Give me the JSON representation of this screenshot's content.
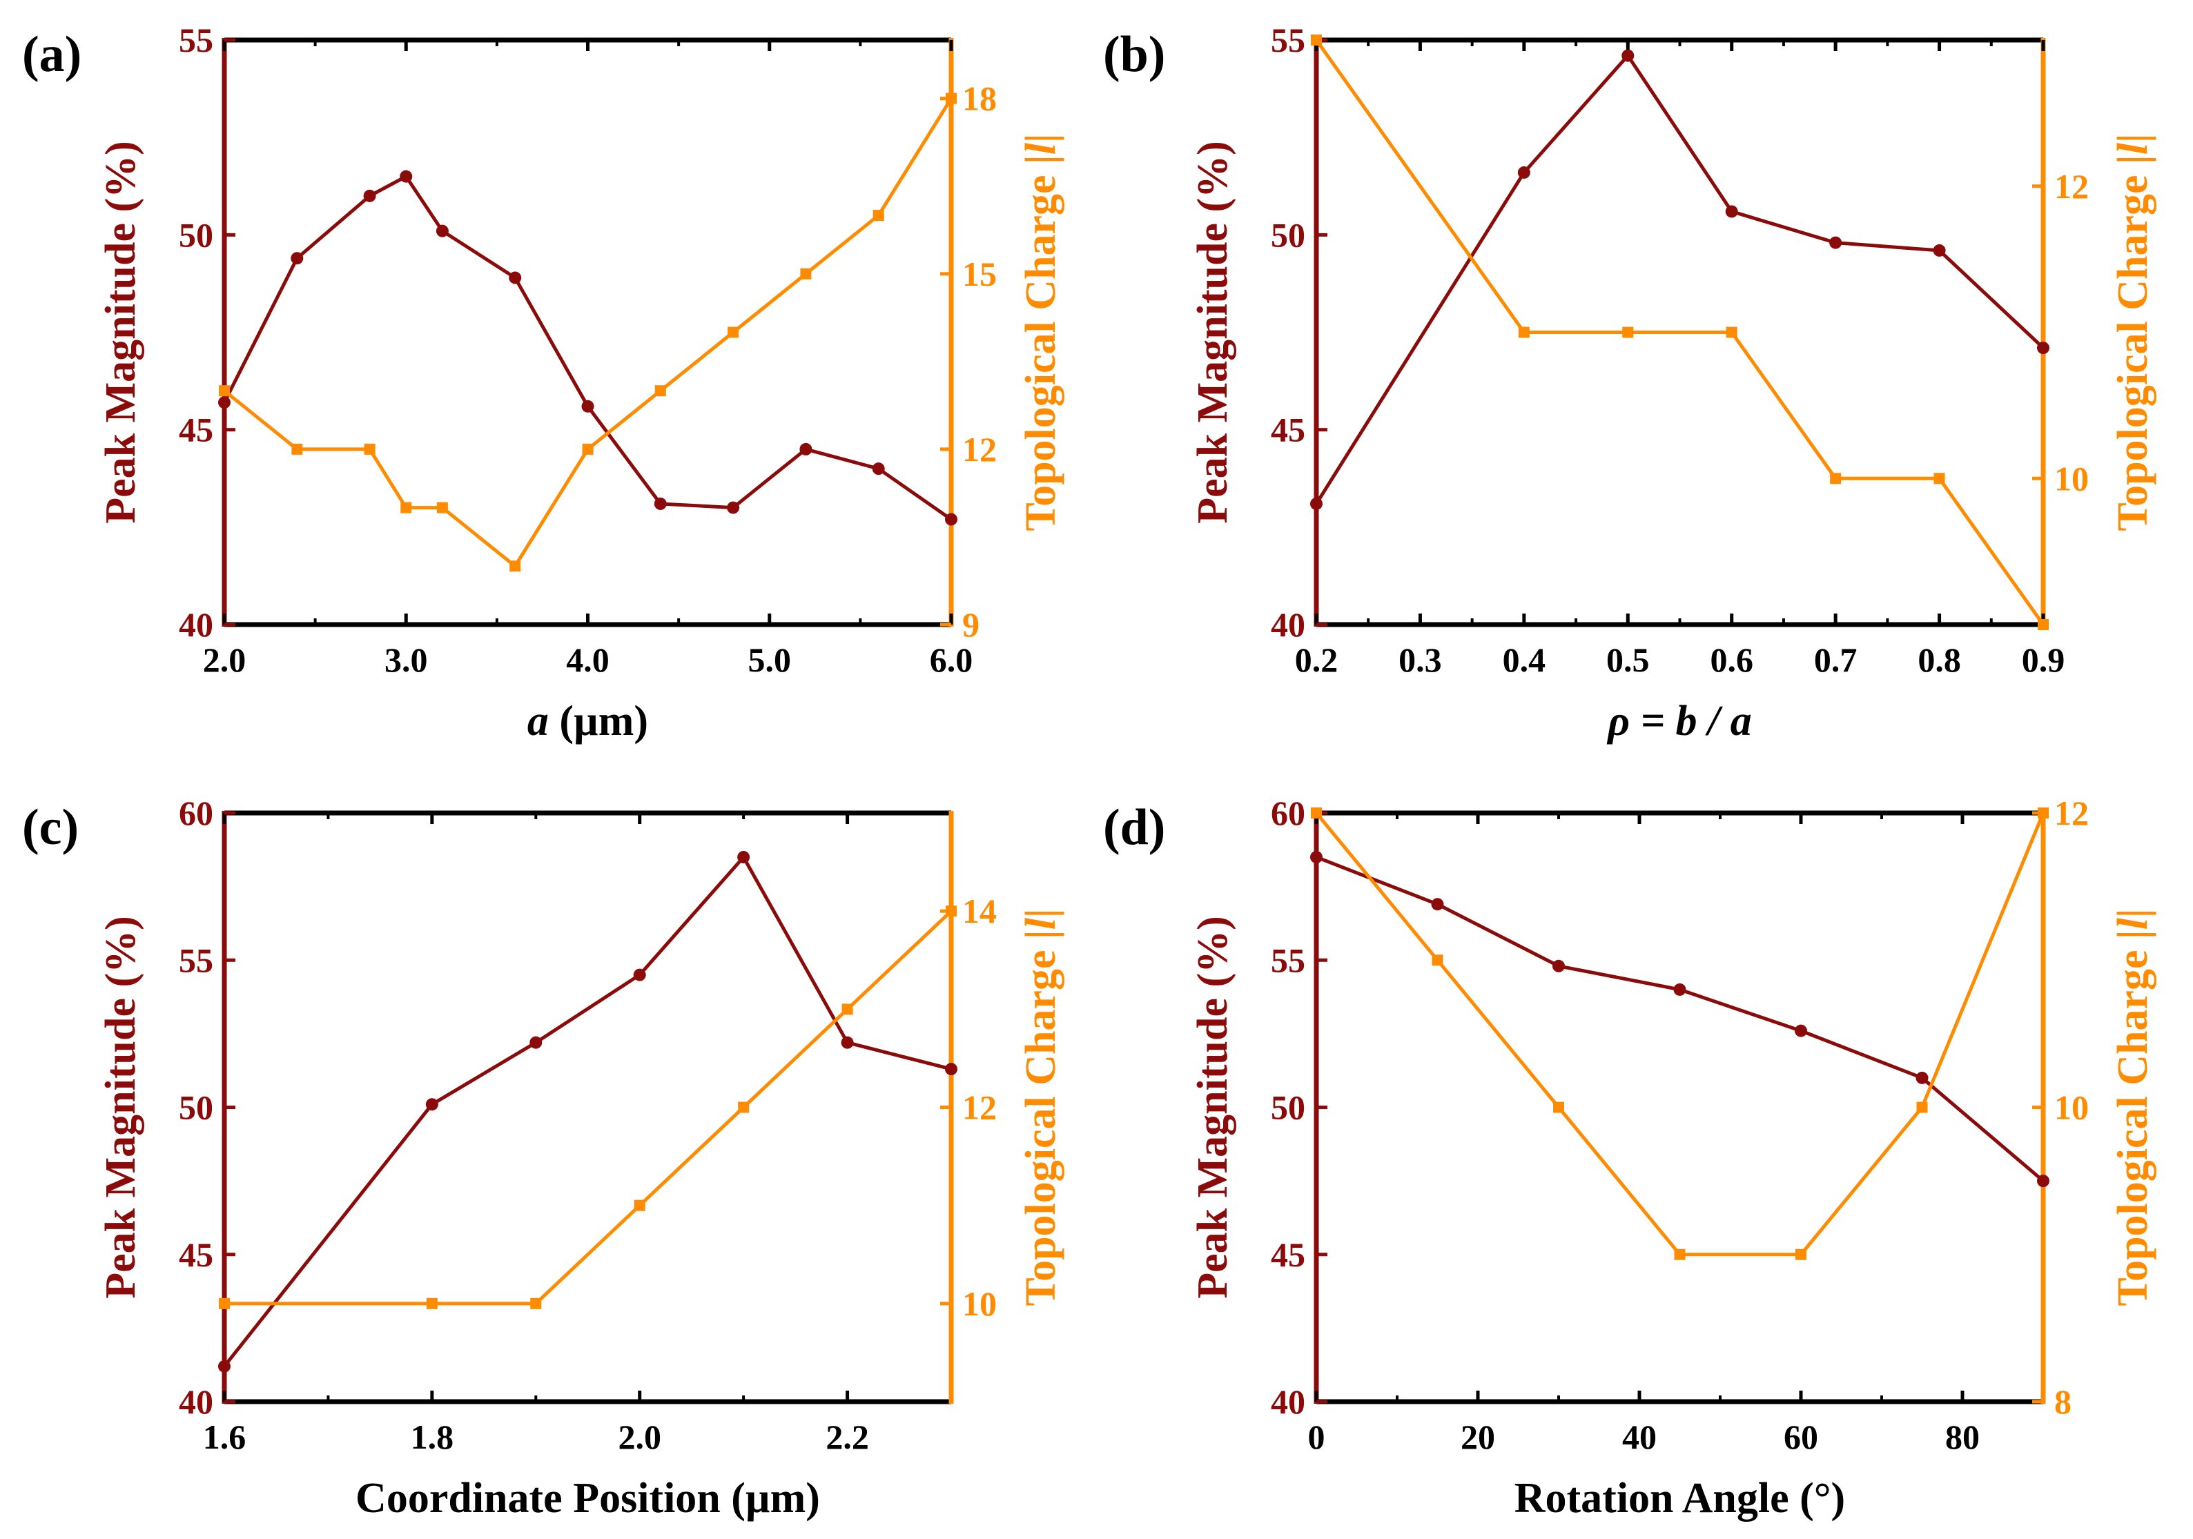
{
  "colors": {
    "left": "#8b0a0a",
    "right": "#ff8c00",
    "frame": "#000000"
  },
  "chart_data": [
    {
      "type": "line",
      "panel_label": "(a)",
      "xlabel": "a (µm)",
      "xlabel_italic": "a",
      "xlabel_rest": " (µm)",
      "ylabel": "Peak Magnitude (%)",
      "y2label": "Topological Charge |l|",
      "y2label_main": "Topological Charge |",
      "y2label_italic": "l",
      "y2label_end": "|",
      "xlim": [
        2.0,
        6.0
      ],
      "xticks": [
        "2.0",
        "3.0",
        "4.0",
        "5.0",
        "6.0"
      ],
      "xtick_values": [
        2.0,
        3.0,
        4.0,
        5.0,
        6.0
      ],
      "ylim": [
        40,
        55
      ],
      "yticks": [
        "40",
        "45",
        "50",
        "55"
      ],
      "ytick_values": [
        40,
        45,
        50,
        55
      ],
      "y2lim": [
        9,
        19
      ],
      "y2ticks": [
        "9",
        "12",
        "15",
        "18"
      ],
      "y2tick_values": [
        9,
        12,
        15,
        18
      ],
      "series": [
        {
          "name": "Peak Magnitude (%)",
          "axis": "left",
          "marker": "circle",
          "x": [
            2.0,
            2.4,
            2.8,
            3.0,
            3.2,
            3.6,
            4.0,
            4.4,
            4.8,
            5.2,
            5.6,
            6.0
          ],
          "y": [
            45.7,
            49.4,
            51.0,
            51.5,
            50.1,
            48.9,
            45.6,
            43.1,
            43.0,
            44.5,
            44.0,
            42.7
          ]
        },
        {
          "name": "Topological Charge |l|",
          "axis": "right",
          "marker": "square",
          "x": [
            2.0,
            2.4,
            2.8,
            3.0,
            3.2,
            3.6,
            4.0,
            4.4,
            4.8,
            5.2,
            5.6,
            6.0
          ],
          "y": [
            13,
            12,
            12,
            11,
            11,
            10,
            12,
            13,
            14,
            15,
            16,
            18
          ]
        }
      ]
    },
    {
      "type": "line",
      "panel_label": "(b)",
      "xlabel": "ρ = b / a",
      "xlabel_italic": "ρ = b / a",
      "xlabel_rest": "",
      "ylabel": "Peak Magnitude (%)",
      "y2label": "Topological Charge |l|",
      "y2label_main": "Topological Charge |",
      "y2label_italic": "l",
      "y2label_end": "|",
      "xlim": [
        0.2,
        0.9
      ],
      "xticks": [
        "0.2",
        "0.3",
        "0.4",
        "0.5",
        "0.6",
        "0.7",
        "0.8",
        "0.9"
      ],
      "xtick_values": [
        0.2,
        0.3,
        0.4,
        0.5,
        0.6,
        0.7,
        0.8,
        0.9
      ],
      "ylim": [
        40,
        55
      ],
      "yticks": [
        "40",
        "45",
        "50",
        "55"
      ],
      "ytick_values": [
        40,
        45,
        50,
        55
      ],
      "y2lim": [
        9,
        13
      ],
      "y2ticks": [
        "10",
        "12"
      ],
      "y2tick_values": [
        10,
        12
      ],
      "series": [
        {
          "name": "Peak Magnitude (%)",
          "axis": "left",
          "marker": "circle",
          "x": [
            0.2,
            0.4,
            0.5,
            0.6,
            0.7,
            0.8,
            0.9
          ],
          "y": [
            43.1,
            51.6,
            54.6,
            50.6,
            49.8,
            49.6,
            47.1
          ]
        },
        {
          "name": "Topological Charge |l|",
          "axis": "right",
          "marker": "square",
          "x": [
            0.2,
            0.4,
            0.5,
            0.6,
            0.7,
            0.8,
            0.9
          ],
          "y": [
            13,
            11,
            11,
            11,
            10,
            10,
            9
          ]
        }
      ]
    },
    {
      "type": "line",
      "panel_label": "(c)",
      "xlabel": "Coordinate Position (µm)",
      "xlabel_italic": "",
      "xlabel_rest": "Coordinate Position (µm)",
      "ylabel": "Peak Magnitude (%)",
      "y2label": "Topological Charge |l|",
      "y2label_main": "Topological Charge |",
      "y2label_italic": "l",
      "y2label_end": "|",
      "xlim": [
        1.6,
        2.3
      ],
      "xticks": [
        "1.6",
        "1.8",
        "2.0",
        "2.2"
      ],
      "xtick_values": [
        1.6,
        1.8,
        2.0,
        2.2
      ],
      "ylim": [
        40,
        60
      ],
      "yticks": [
        "40",
        "45",
        "50",
        "55",
        "60"
      ],
      "ytick_values": [
        40,
        45,
        50,
        55,
        60
      ],
      "y2lim": [
        9,
        15
      ],
      "y2ticks": [
        "10",
        "12",
        "14"
      ],
      "y2tick_values": [
        10,
        12,
        14
      ],
      "series": [
        {
          "name": "Peak Magnitude (%)",
          "axis": "left",
          "marker": "circle",
          "x": [
            1.6,
            1.8,
            1.9,
            2.0,
            2.1,
            2.2,
            2.3
          ],
          "y": [
            41.2,
            50.1,
            52.2,
            54.5,
            58.5,
            52.2,
            51.3
          ]
        },
        {
          "name": "Topological Charge |l|",
          "axis": "right",
          "marker": "square",
          "x": [
            1.6,
            1.8,
            1.9,
            2.0,
            2.1,
            2.2,
            2.3
          ],
          "y": [
            10,
            10,
            10,
            11,
            12,
            13,
            14
          ]
        }
      ]
    },
    {
      "type": "line",
      "panel_label": "(d)",
      "xlabel": "Rotation Angle (°)",
      "xlabel_italic": "",
      "xlabel_rest": "Rotation Angle (°)",
      "ylabel": "Peak Magnitude (%)",
      "y2label": "Topological Charge |l|",
      "y2label_main": "Topological Charge |",
      "y2label_italic": "l",
      "y2label_end": "|",
      "xlim": [
        0,
        90
      ],
      "xticks": [
        "0",
        "20",
        "40",
        "60",
        "80"
      ],
      "xtick_values": [
        0,
        20,
        40,
        60,
        80
      ],
      "ylim": [
        40,
        60
      ],
      "yticks": [
        "40",
        "45",
        "50",
        "55",
        "60"
      ],
      "ytick_values": [
        40,
        45,
        50,
        55,
        60
      ],
      "y2lim": [
        8,
        12
      ],
      "y2ticks": [
        "8",
        "10",
        "12"
      ],
      "y2tick_values": [
        8,
        10,
        12
      ],
      "series": [
        {
          "name": "Peak Magnitude (%)",
          "axis": "left",
          "marker": "circle",
          "x": [
            0,
            15,
            30,
            45,
            60,
            75,
            90
          ],
          "y": [
            58.5,
            56.9,
            54.8,
            54.0,
            52.6,
            51.0,
            47.5
          ]
        },
        {
          "name": "Topological Charge |l|",
          "axis": "right",
          "marker": "square",
          "x": [
            0,
            15,
            30,
            45,
            60,
            75,
            90
          ],
          "y": [
            12,
            11,
            10,
            9,
            9,
            10,
            12
          ]
        }
      ]
    }
  ]
}
